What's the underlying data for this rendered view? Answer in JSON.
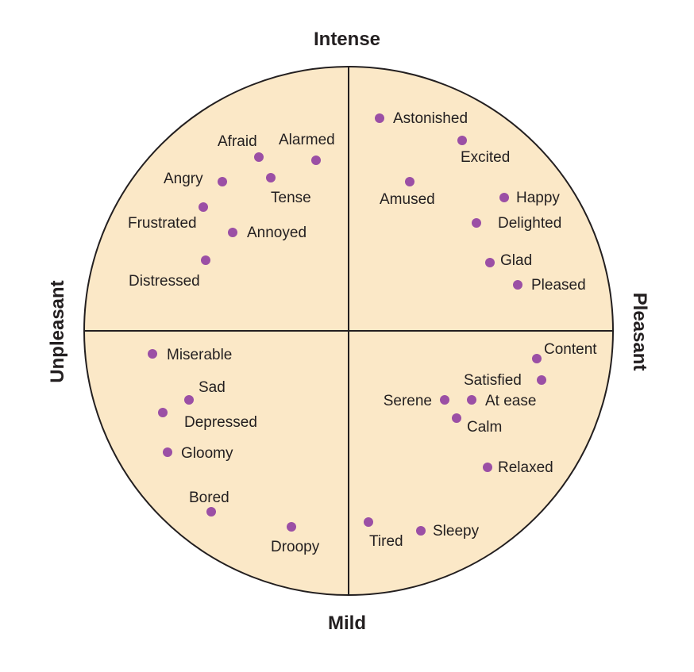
{
  "axes": {
    "top": "Intense",
    "bottom": "Mild",
    "left": "Unpleasant",
    "right": "Pleasant"
  },
  "colors": {
    "fill": "#fbe8c7",
    "dot": "#9b4fa5",
    "line": "#231f20"
  },
  "emotions": [
    {
      "name": "Astonished"
    },
    {
      "name": "Excited"
    },
    {
      "name": "Amused"
    },
    {
      "name": "Happy"
    },
    {
      "name": "Delighted"
    },
    {
      "name": "Glad"
    },
    {
      "name": "Pleased"
    },
    {
      "name": "Afraid"
    },
    {
      "name": "Alarmed"
    },
    {
      "name": "Angry"
    },
    {
      "name": "Tense"
    },
    {
      "name": "Frustrated"
    },
    {
      "name": "Annoyed"
    },
    {
      "name": "Distressed"
    },
    {
      "name": "Miserable"
    },
    {
      "name": "Sad"
    },
    {
      "name": "Depressed"
    },
    {
      "name": "Gloomy"
    },
    {
      "name": "Bored"
    },
    {
      "name": "Droopy"
    },
    {
      "name": "Content"
    },
    {
      "name": "Satisfied"
    },
    {
      "name": "Serene"
    },
    {
      "name": "At ease"
    },
    {
      "name": "Calm"
    },
    {
      "name": "Relaxed"
    },
    {
      "name": "Tired"
    },
    {
      "name": "Sleepy"
    }
  ]
}
